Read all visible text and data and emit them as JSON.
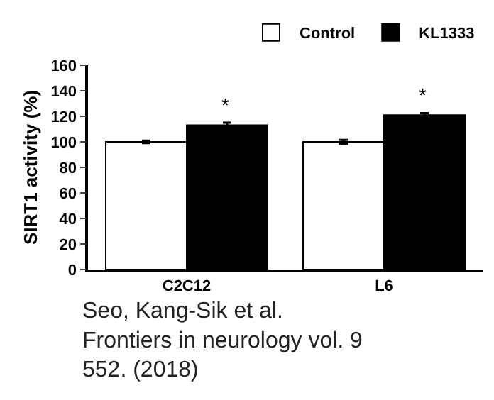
{
  "chart_data": {
    "type": "bar",
    "ylabel": "SIRT1 activity (%)",
    "categories": [
      "C2C12",
      "L6"
    ],
    "series": [
      {
        "name": "Control",
        "color": "#ffffff",
        "values": [
          100,
          100
        ],
        "errors": [
          1,
          1.5
        ]
      },
      {
        "name": "KL1333",
        "color": "#000000",
        "values": [
          113,
          121
        ],
        "errors": [
          2,
          1.5
        ]
      }
    ],
    "ylim": [
      0,
      160
    ],
    "yticks": [
      0,
      20,
      40,
      60,
      80,
      100,
      120,
      140,
      160
    ],
    "grid": false,
    "legend": "top right",
    "annotations": [
      {
        "text": "*",
        "x": "C2C12",
        "y": 118
      },
      {
        "text": "*",
        "x": "L6",
        "y": 126
      },
      "Seo, Kang-Sik et al.\nFrontiers in neurology vol. 9\n552. (2018)"
    ]
  }
}
